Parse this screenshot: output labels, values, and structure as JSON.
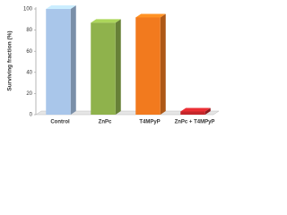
{
  "chart_data": {
    "type": "bar3d",
    "y_label": "Surviving fraction (%)",
    "categories": [
      "Control",
      "ZnPc",
      "T4MPyP",
      "ZnPc + T4MPyP"
    ],
    "values": [
      100,
      87,
      92,
      3
    ],
    "colors": [
      "#a9c6ea",
      "#8fb24c",
      "#f27a1e",
      "#c4262b"
    ],
    "ylim": [
      0,
      100
    ],
    "yticks": [
      0,
      20,
      40,
      60,
      80,
      100
    ]
  }
}
